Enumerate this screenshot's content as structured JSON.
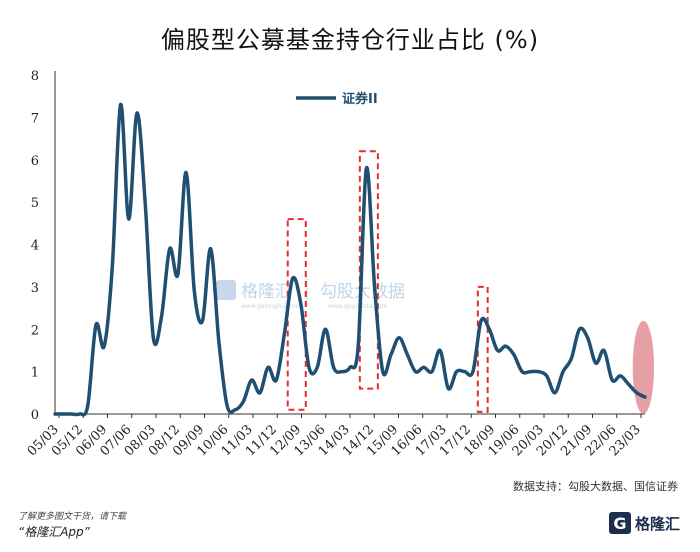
{
  "chart_data": {
    "type": "line",
    "title": "偏股型公募基金持仓行业占比 (%)",
    "ylim": [
      0,
      8
    ],
    "yticks": [
      0,
      1,
      2,
      3,
      4,
      5,
      6,
      7,
      8
    ],
    "xticks": [
      "05/03",
      "05/12",
      "06/09",
      "07/06",
      "08/03",
      "08/12",
      "09/09",
      "10/06",
      "11/03",
      "11/12",
      "12/09",
      "13/06",
      "14/03",
      "14/12",
      "15/09",
      "16/06",
      "17/03",
      "17/12",
      "18/09",
      "19/06",
      "20/03",
      "20/12",
      "21/09",
      "22/06",
      "23/03"
    ],
    "series": [
      {
        "name": "证券II",
        "color": "#1f4f71",
        "x": [
          0,
          1,
          2,
          3,
          4,
          5,
          6,
          7,
          8,
          9,
          10,
          11,
          12,
          13,
          14,
          15,
          16,
          17,
          18,
          19,
          20,
          21,
          22,
          23,
          24,
          25,
          26,
          27,
          28,
          29,
          30,
          31,
          32,
          33,
          34,
          35,
          36,
          37,
          38,
          39,
          40,
          41,
          42,
          43,
          44,
          45,
          46,
          47,
          48,
          49,
          50,
          51,
          52,
          53,
          54,
          55,
          56,
          57,
          58,
          59,
          60,
          61,
          62,
          63,
          64,
          65,
          66,
          67,
          68,
          69,
          70,
          71,
          72
        ],
        "y": [
          0,
          0,
          0,
          0,
          0.2,
          2.1,
          1.6,
          3.5,
          7.3,
          4.6,
          7.1,
          5.0,
          1.8,
          2.3,
          3.9,
          3.3,
          5.7,
          2.9,
          2.2,
          3.9,
          1.7,
          0.2,
          0.1,
          0.3,
          0.8,
          0.5,
          1.1,
          0.8,
          1.9,
          3.2,
          2.6,
          1.1,
          1.1,
          2.0,
          1.1,
          1.0,
          1.1,
          1.6,
          5.8,
          3.0,
          1.0,
          1.4,
          1.8,
          1.4,
          1.0,
          1.1,
          1.0,
          1.5,
          0.6,
          1.0,
          1.0,
          1.0,
          2.2,
          2.0,
          1.5,
          1.6,
          1.4,
          1.0,
          1.0,
          1.0,
          0.9,
          0.5,
          1.0,
          1.3,
          2.0,
          1.8,
          1.2,
          1.5,
          0.8,
          0.9,
          0.7,
          0.5,
          0.4
        ]
      }
    ],
    "highlights": [
      {
        "x0": 28.4,
        "x1": 30.6,
        "y0": 0.1,
        "y1": 4.6
      },
      {
        "x0": 37.2,
        "x1": 39.4,
        "y0": 0.6,
        "y1": 6.2
      },
      {
        "x0": 51.6,
        "x1": 52.8,
        "y0": 0.05,
        "y1": 3.0
      }
    ],
    "highlight_color": "#e03030",
    "end_ellipse": {
      "x": 71.8,
      "y": 1.1,
      "rx": 1.3,
      "ry": 1.1,
      "color": "#d96b75"
    },
    "legend": "top-center",
    "grid": false
  },
  "watermark": {
    "name": "格隆汇",
    "url": "www.gelonghui.com",
    "partner": "勾股大数据",
    "partner_url": "www.gogudata.com"
  },
  "source_note": "数据支持：勾股大数据、国信证券",
  "footer": {
    "note": "了解更多图文干货，请下载",
    "app": "“格隆汇App”",
    "logo_mark": "G",
    "logo_text": "格隆汇"
  }
}
